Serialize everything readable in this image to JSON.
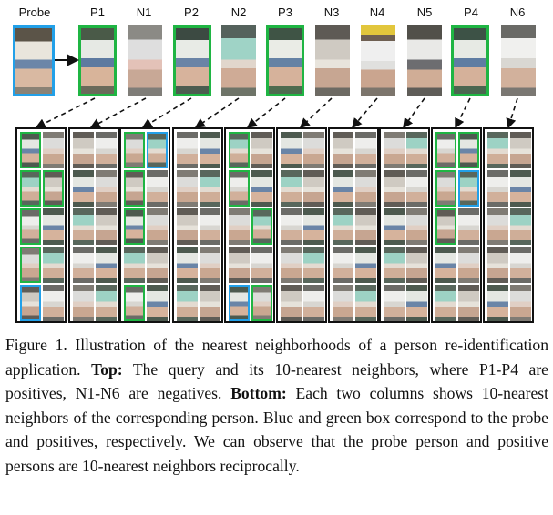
{
  "top_labels": [
    "Probe",
    "P1",
    "N1",
    "P2",
    "N2",
    "P3",
    "N3",
    "N4",
    "N5",
    "P4",
    "N6"
  ],
  "caption": {
    "figure_label": "Figure 1.",
    "intro": "Illustration of the nearest neighborhoods of a person re-identification application.",
    "top_label": "Top:",
    "top_text": "The query and its 10-nearest neighbors, where P1-P4 are positives, N1-N6 are negatives.",
    "bottom_label": "Bottom:",
    "bottom_text": "Each two columns shows 10-nearest neighbors of the corresponding person. Blue and green box correspond to the probe and positives, respectively. We can observe that the probe person and positive persons are 10-nearest neighbors reciprocally."
  },
  "colors": {
    "probe_box": "#22a0e8",
    "positive_box": "#1fb543",
    "frame": "#111111"
  }
}
